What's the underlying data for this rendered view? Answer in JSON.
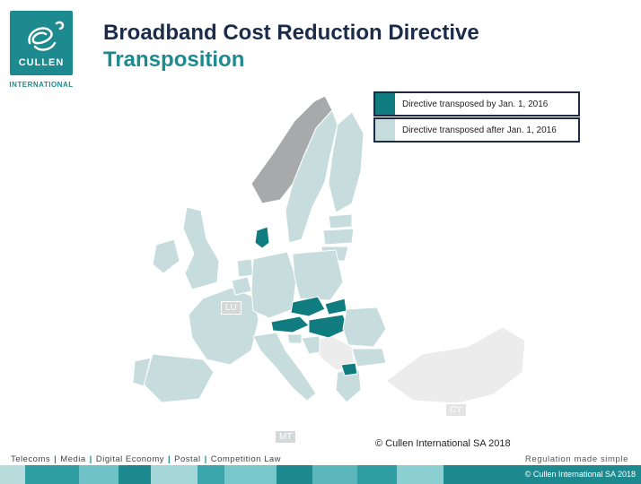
{
  "logo": {
    "name": "CULLEN",
    "sub": "INTERNATIONAL"
  },
  "title": {
    "line1": "Broadband Cost Reduction Directive",
    "line2": "Transposition"
  },
  "legend": [
    {
      "label": "Directive transposed by Jan. 1, 2016",
      "color": "#117c7f"
    },
    {
      "label": "Directive transposed after Jan. 1, 2016",
      "color": "#c6dcdd"
    }
  ],
  "country_tags": {
    "lu": "LU",
    "mt": "MT",
    "cy": "CY"
  },
  "colors": {
    "transposed_on_time": "#117c7f",
    "transposed_late": "#c6dcdd",
    "non_eu": "#ececec",
    "norway": "#a8a9ab",
    "brand": "#1d8a8f"
  },
  "copyright_center": "© Cullen International SA 2018",
  "footer": {
    "sectors": [
      "Telecoms",
      "Media",
      "Digital Economy",
      "Postal",
      "Competition Law"
    ],
    "tagline": "Regulation made simple",
    "copyright": "© Cullen International SA 2018"
  }
}
